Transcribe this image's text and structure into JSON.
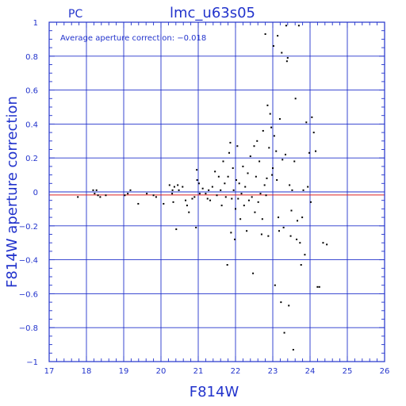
{
  "chart_data": {
    "type": "scatter",
    "title": "lmc_u63s05",
    "corner_label": "PC",
    "annotation": "Average aperture correction: −0.018",
    "xlabel": "F814W",
    "ylabel": "F814W aperture correction",
    "xlim": [
      17,
      26
    ],
    "ylim": [
      -1,
      1
    ],
    "x_ticks": [
      17,
      18,
      19,
      20,
      21,
      22,
      23,
      24,
      25,
      26
    ],
    "y_ticks": [
      -1,
      -0.8,
      -0.6,
      -0.4,
      -0.2,
      0,
      0.2,
      0.4,
      0.6,
      0.8,
      1
    ],
    "x_tick_labels": [
      "17",
      "18",
      "19",
      "20",
      "21",
      "22",
      "23",
      "24",
      "25",
      "26"
    ],
    "y_tick_labels": [
      "−1",
      "−0.8",
      "−0.6",
      "−0.4",
      "−0.2",
      "0",
      "0.2",
      "0.4",
      "0.6",
      "0.8",
      "1"
    ],
    "grid": true,
    "reference_lines": [
      {
        "y": 0,
        "color": "#2233cc"
      },
      {
        "y": -0.018,
        "color": "#dd2222"
      }
    ],
    "colors": {
      "axes": "#2233cc",
      "points": "#000000",
      "average_line": "#dd2222"
    },
    "points": [
      [
        17.77,
        -0.03
      ],
      [
        18.18,
        0.01
      ],
      [
        18.22,
        -0.01
      ],
      [
        18.27,
        0.01
      ],
      [
        18.31,
        -0.02
      ],
      [
        18.37,
        -0.03
      ],
      [
        18.52,
        -0.02
      ],
      [
        19.03,
        -0.02
      ],
      [
        19.11,
        -0.01
      ],
      [
        19.18,
        0.01
      ],
      [
        19.39,
        -0.07
      ],
      [
        19.62,
        -0.01
      ],
      [
        19.8,
        -0.02
      ],
      [
        19.87,
        -0.03
      ],
      [
        20.07,
        -0.07
      ],
      [
        20.23,
        0.04
      ],
      [
        20.3,
        -0.01
      ],
      [
        20.31,
        0.01
      ],
      [
        20.33,
        -0.06
      ],
      [
        20.36,
        0.03
      ],
      [
        20.41,
        -0.22
      ],
      [
        20.45,
        0.04
      ],
      [
        20.48,
        0.01
      ],
      [
        20.58,
        0.03
      ],
      [
        20.66,
        -0.05
      ],
      [
        20.7,
        -0.08
      ],
      [
        20.75,
        -0.12
      ],
      [
        20.84,
        -0.04
      ],
      [
        20.9,
        -0.03
      ],
      [
        20.94,
        -0.21
      ],
      [
        20.96,
        0.13
      ],
      [
        20.97,
        0.07
      ],
      [
        21.02,
        0.05
      ],
      [
        21.04,
        -0.01
      ],
      [
        21.12,
        0.02
      ],
      [
        21.2,
        -0.01
      ],
      [
        21.25,
        -0.04
      ],
      [
        21.28,
        0.01
      ],
      [
        21.32,
        -0.05
      ],
      [
        21.38,
        0.03
      ],
      [
        21.45,
        0.12
      ],
      [
        21.5,
        -0.02
      ],
      [
        21.55,
        0.09
      ],
      [
        21.6,
        0.01
      ],
      [
        21.63,
        -0.08
      ],
      [
        21.67,
        0.18
      ],
      [
        21.71,
        0.05
      ],
      [
        21.74,
        -0.03
      ],
      [
        21.78,
        -0.43
      ],
      [
        21.8,
        0.09
      ],
      [
        21.83,
        0.23
      ],
      [
        21.86,
        0.29
      ],
      [
        21.88,
        -0.24
      ],
      [
        21.9,
        -0.04
      ],
      [
        21.93,
        0.14
      ],
      [
        21.95,
        0.01
      ],
      [
        21.98,
        -0.28
      ],
      [
        22.0,
        -0.1
      ],
      [
        22.02,
        0.07
      ],
      [
        22.05,
        0.27
      ],
      [
        22.07,
        -0.04
      ],
      [
        22.1,
        0.05
      ],
      [
        22.13,
        -0.16
      ],
      [
        22.16,
        -0.01
      ],
      [
        22.2,
        0.15
      ],
      [
        22.23,
        -0.08
      ],
      [
        22.26,
        0.03
      ],
      [
        22.3,
        -0.23
      ],
      [
        22.33,
        0.11
      ],
      [
        22.36,
        -0.05
      ],
      [
        22.4,
        0.21
      ],
      [
        22.44,
        -0.03
      ],
      [
        22.47,
        -0.48
      ],
      [
        22.5,
        0.27
      ],
      [
        22.52,
        -0.12
      ],
      [
        22.55,
        0.09
      ],
      [
        22.58,
        0.3
      ],
      [
        22.61,
        -0.06
      ],
      [
        22.64,
        0.18
      ],
      [
        22.67,
        -0.01
      ],
      [
        22.7,
        -0.25
      ],
      [
        22.72,
        -0.16
      ],
      [
        22.74,
        0.36
      ],
      [
        22.78,
        0.04
      ],
      [
        22.8,
        0.93
      ],
      [
        22.82,
        -0.02
      ],
      [
        22.84,
        0.08
      ],
      [
        22.86,
        0.51
      ],
      [
        22.88,
        -0.26
      ],
      [
        22.9,
        0.26
      ],
      [
        22.93,
        0.46
      ],
      [
        22.96,
        0.38
      ],
      [
        22.98,
        0.1
      ],
      [
        23.0,
        0.14
      ],
      [
        23.02,
        0.86
      ],
      [
        23.04,
        0.33
      ],
      [
        23.06,
        -0.55
      ],
      [
        23.09,
        0.24
      ],
      [
        23.11,
        0.07
      ],
      [
        23.13,
        0.92
      ],
      [
        23.15,
        -0.15
      ],
      [
        23.17,
        -0.23
      ],
      [
        23.19,
        0.43
      ],
      [
        23.22,
        -0.65
      ],
      [
        23.24,
        0.82
      ],
      [
        23.26,
        0.19
      ],
      [
        23.29,
        -0.21
      ],
      [
        23.31,
        -0.83
      ],
      [
        23.34,
        0.22
      ],
      [
        23.36,
        0.98
      ],
      [
        23.38,
        0.77
      ],
      [
        23.4,
        0.79
      ],
      [
        23.43,
        -0.67
      ],
      [
        23.45,
        0.04
      ],
      [
        23.48,
        -0.26
      ],
      [
        23.5,
        -0.11
      ],
      [
        23.52,
        0.01
      ],
      [
        23.55,
        -0.93
      ],
      [
        23.58,
        0.18
      ],
      [
        23.61,
        0.55
      ],
      [
        23.64,
        -0.28
      ],
      [
        23.66,
        -0.17
      ],
      [
        23.7,
        0.98
      ],
      [
        23.73,
        -0.3
      ],
      [
        23.76,
        -0.43
      ],
      [
        23.79,
        -0.15
      ],
      [
        23.82,
        0.01
      ],
      [
        23.86,
        -0.37
      ],
      [
        23.9,
        0.41
      ],
      [
        23.94,
        0.03
      ],
      [
        23.98,
        0.23
      ],
      [
        24.02,
        -0.06
      ],
      [
        24.05,
        0.44
      ],
      [
        24.1,
        0.35
      ],
      [
        24.15,
        0.24
      ],
      [
        24.2,
        -0.56
      ],
      [
        24.25,
        -0.56
      ],
      [
        24.35,
        -0.3
      ],
      [
        24.45,
        -0.31
      ]
    ]
  }
}
